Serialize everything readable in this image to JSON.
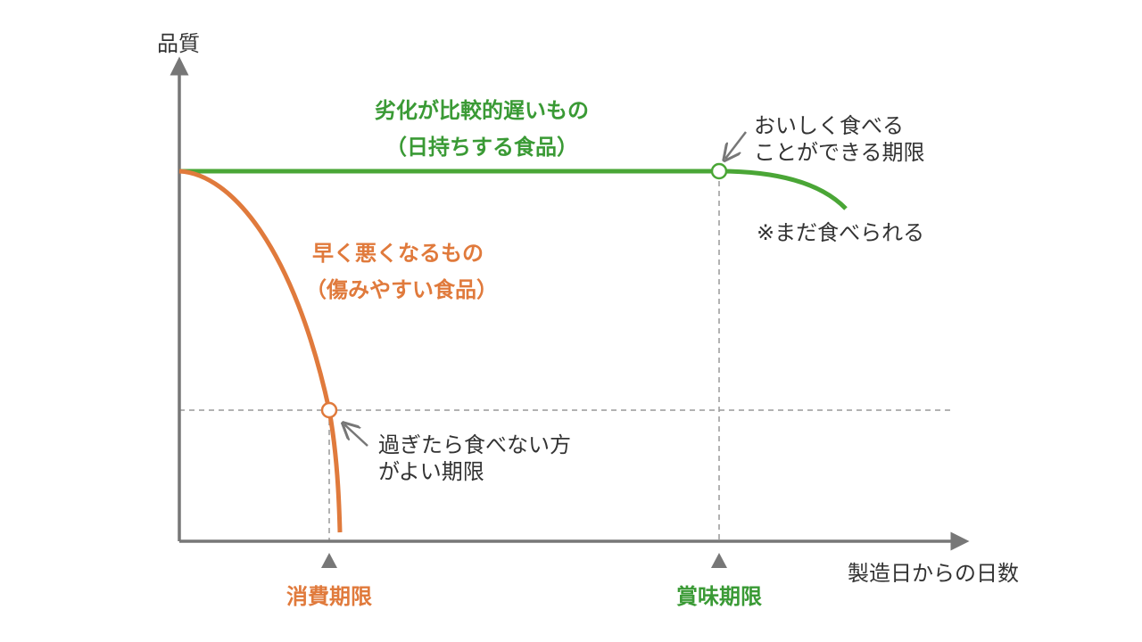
{
  "axes": {
    "y_label": "品質",
    "x_label": "製造日からの日数"
  },
  "slow": {
    "label": [
      "劣化が比較的遅いもの",
      "（日持ちする食品）"
    ],
    "note": "※まだ食べられる",
    "point_label": [
      "おいしく食べる",
      "ことができる期限"
    ],
    "deadline": "賞味期限"
  },
  "fast": {
    "label": [
      "早く悪くなるもの",
      "（傷みやすい食品）"
    ],
    "point_label": [
      "過ぎたら食べない方",
      "がよい期限"
    ],
    "deadline": "消費期限"
  }
}
